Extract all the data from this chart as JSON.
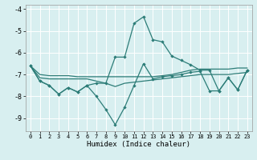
{
  "x": [
    0,
    1,
    2,
    3,
    4,
    5,
    6,
    7,
    8,
    9,
    10,
    11,
    12,
    13,
    14,
    15,
    16,
    17,
    18,
    19,
    20,
    21,
    22,
    23
  ],
  "line_spike": [
    -6.6,
    -7.3,
    -7.5,
    -7.9,
    -7.6,
    -7.8,
    -7.5,
    -7.4,
    -7.4,
    -6.2,
    -6.2,
    -4.65,
    -4.35,
    -5.4,
    -5.5,
    -6.15,
    -6.35,
    -6.55,
    -6.8,
    -6.8,
    -7.75,
    -7.15,
    -7.7,
    -6.8
  ],
  "line_low": [
    -6.6,
    -7.3,
    -7.5,
    -7.9,
    -7.6,
    -7.8,
    -7.5,
    -8.0,
    -8.6,
    -9.3,
    -8.5,
    -7.5,
    -6.5,
    -7.2,
    -7.1,
    -7.05,
    -7.0,
    -6.9,
    -6.85,
    -7.75,
    -7.75,
    -7.15,
    -7.7,
    -6.8
  ],
  "line_flat_upper": [
    -6.6,
    -7.0,
    -7.05,
    -7.05,
    -7.05,
    -7.1,
    -7.1,
    -7.1,
    -7.1,
    -7.1,
    -7.1,
    -7.1,
    -7.1,
    -7.1,
    -7.05,
    -7.0,
    -6.9,
    -6.8,
    -6.75,
    -6.75,
    -6.75,
    -6.75,
    -6.7,
    -6.7
  ],
  "line_flat_lower": [
    -6.6,
    -7.15,
    -7.2,
    -7.2,
    -7.2,
    -7.2,
    -7.2,
    -7.3,
    -7.4,
    -7.55,
    -7.4,
    -7.35,
    -7.3,
    -7.25,
    -7.2,
    -7.15,
    -7.1,
    -7.05,
    -7.0,
    -7.0,
    -7.0,
    -7.0,
    -6.95,
    -6.9
  ],
  "color": "#2d7d78",
  "bg_color": "#d8eff0",
  "grid_color": "#ffffff",
  "xlabel": "Humidex (Indice chaleur)",
  "ylim": [
    -9.6,
    -3.8
  ],
  "xlim": [
    -0.5,
    23.5
  ],
  "yticks": [
    -9,
    -8,
    -7,
    -6,
    -5,
    -4
  ],
  "xticks": [
    0,
    1,
    2,
    3,
    4,
    5,
    6,
    7,
    8,
    9,
    10,
    11,
    12,
    13,
    14,
    15,
    16,
    17,
    18,
    19,
    20,
    21,
    22,
    23
  ]
}
